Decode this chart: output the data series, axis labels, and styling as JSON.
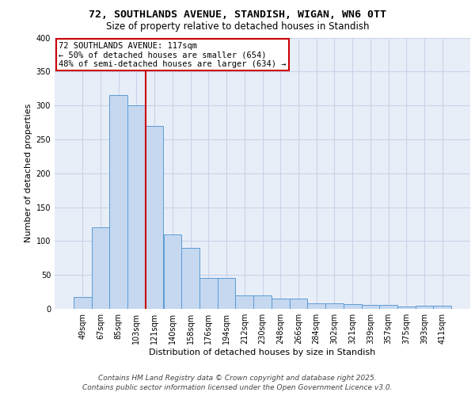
{
  "title_line1": "72, SOUTHLANDS AVENUE, STANDISH, WIGAN, WN6 0TT",
  "title_line2": "Size of property relative to detached houses in Standish",
  "xlabel": "Distribution of detached houses by size in Standish",
  "ylabel": "Number of detached properties",
  "categories": [
    "49sqm",
    "67sqm",
    "85sqm",
    "103sqm",
    "121sqm",
    "140sqm",
    "158sqm",
    "176sqm",
    "194sqm",
    "212sqm",
    "230sqm",
    "248sqm",
    "266sqm",
    "284sqm",
    "302sqm",
    "321sqm",
    "339sqm",
    "357sqm",
    "375sqm",
    "393sqm",
    "411sqm"
  ],
  "values": [
    18,
    120,
    315,
    300,
    270,
    110,
    90,
    45,
    45,
    20,
    20,
    15,
    15,
    8,
    8,
    7,
    6,
    6,
    3,
    5,
    5
  ],
  "bar_color": "#c5d8f0",
  "bar_edge_color": "#5b9bd5",
  "vline_color": "#cc0000",
  "annotation_box_text": "72 SOUTHLANDS AVENUE: 117sqm\n← 50% of detached houses are smaller (654)\n48% of semi-detached houses are larger (634) →",
  "annotation_box_color": "#cc0000",
  "annotation_box_fill": "#ffffff",
  "grid_color": "#c8d4e8",
  "background_color": "#e8eef8",
  "ylim": [
    0,
    400
  ],
  "yticks": [
    0,
    50,
    100,
    150,
    200,
    250,
    300,
    350,
    400
  ],
  "footer_line1": "Contains HM Land Registry data © Crown copyright and database right 2025.",
  "footer_line2": "Contains public sector information licensed under the Open Government Licence v3.0.",
  "title_fontsize": 9.5,
  "subtitle_fontsize": 8.5,
  "axis_label_fontsize": 8,
  "tick_fontsize": 7,
  "annotation_fontsize": 7.5,
  "footer_fontsize": 6.5
}
